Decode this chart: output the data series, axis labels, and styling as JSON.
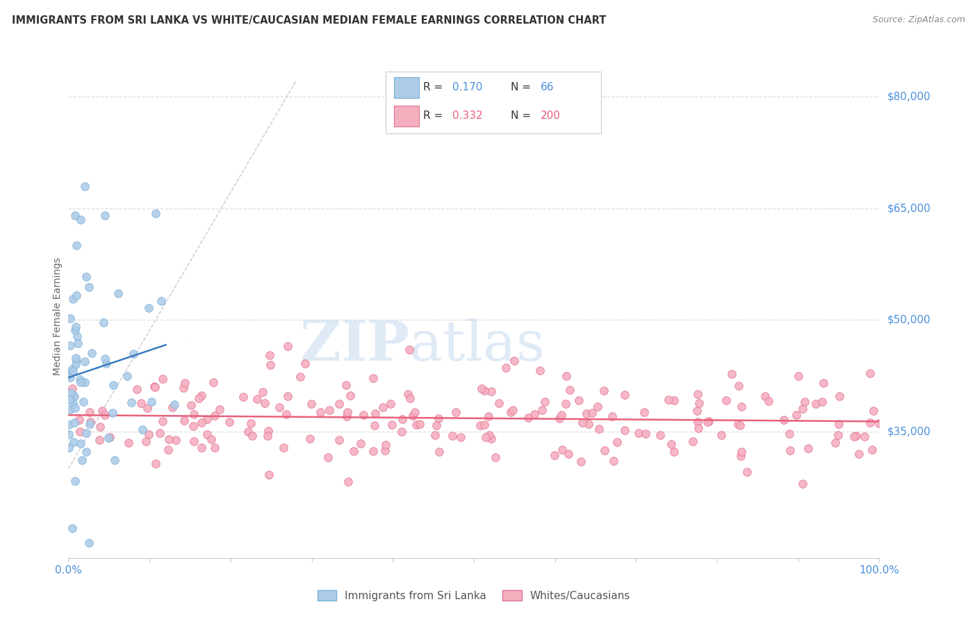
{
  "title": "IMMIGRANTS FROM SRI LANKA VS WHITE/CAUCASIAN MEDIAN FEMALE EARNINGS CORRELATION CHART",
  "source": "Source: ZipAtlas.com",
  "ylabel": "Median Female Earnings",
  "y_tick_labels": [
    "$35,000",
    "$50,000",
    "$65,000",
    "$80,000"
  ],
  "y_tick_values": [
    35000,
    50000,
    65000,
    80000
  ],
  "y_min": 18000,
  "y_max": 83000,
  "x_min": 0.0,
  "x_max": 100.0,
  "watermark_zip": "ZIP",
  "watermark_atlas": "atlas",
  "series1": {
    "label": "Immigrants from Sri Lanka",
    "R": "0.170",
    "N": "66",
    "color": "#aecce8",
    "trend_color": "#3a7abf",
    "marker_edge": "#7ab0d8"
  },
  "series2": {
    "label": "Whites/Caucasians",
    "R": "0.332",
    "N": "200",
    "color": "#f5b0c0",
    "trend_color": "#e8607a",
    "marker_edge": "#e07090"
  },
  "title_color": "#333333",
  "source_color": "#888888",
  "axis_label_color": "#666666",
  "tick_label_color_blue": "#4a90d9",
  "tick_label_color_gray": "#aaaaaa",
  "grid_color": "#dddddd",
  "ref_line_color": "#bbbbbb",
  "background_color": "#ffffff",
  "legend_R_color": "#333333",
  "legend_N_color": "#333333",
  "legend_val_color_blue": "#4a90d9",
  "legend_val_color_pink": "#e8607a"
}
